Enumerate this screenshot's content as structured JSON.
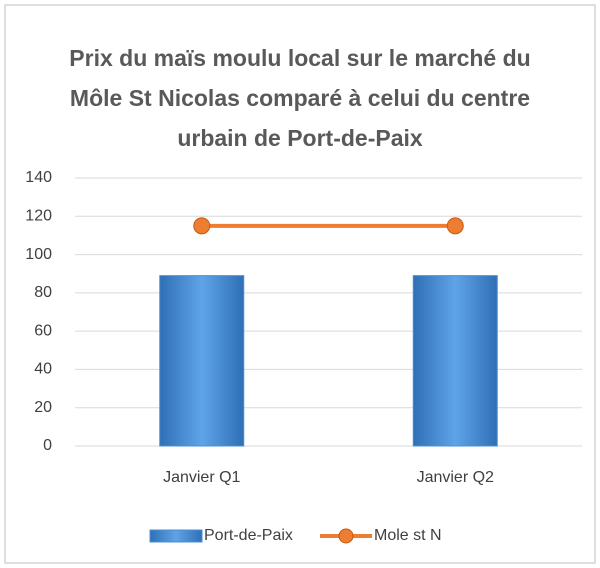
{
  "chart_data": {
    "type": "bar_line",
    "title": "Prix du maïs moulu local sur le marché du Môle St Nicolas comparé à celui du centre urbain de Port-de-Paix",
    "categories": [
      "Janvier Q1",
      "Janvier Q2"
    ],
    "series": [
      {
        "name": "Port-de-Paix",
        "type": "bar",
        "color": "#4a8fd6",
        "values": [
          89,
          89
        ]
      },
      {
        "name": "Mole st N",
        "type": "line",
        "color": "#ed7d31",
        "values": [
          115,
          115
        ]
      }
    ],
    "ylim": [
      0,
      140
    ],
    "yticks": [
      0,
      20,
      40,
      60,
      80,
      100,
      120,
      140
    ],
    "grid": true,
    "legend": "bottom"
  }
}
